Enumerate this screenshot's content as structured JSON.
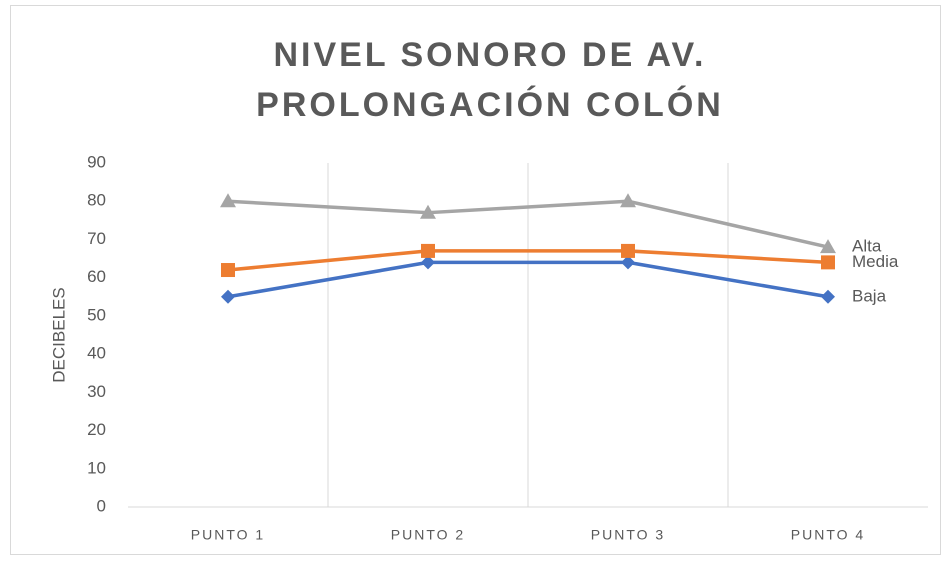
{
  "chart_data": {
    "type": "line",
    "title": "NIVEL SONORO DE AV. PROLONGACIÓN COLÓN",
    "y_label": "DECIBELES",
    "categories": [
      "PUNTO 1",
      "PUNTO 2",
      "PUNTO 3",
      "PUNTO 4"
    ],
    "series": [
      {
        "name": "Baja",
        "color": "#4472c4",
        "marker": "diamond",
        "values": [
          55,
          64,
          64,
          55
        ]
      },
      {
        "name": "Media",
        "color": "#ed7d31",
        "marker": "square",
        "values": [
          62,
          67,
          67,
          64
        ]
      },
      {
        "name": "Alta",
        "color": "#a5a5a5",
        "marker": "triangle",
        "values": [
          80,
          77,
          80,
          68
        ]
      }
    ],
    "ylim": [
      0,
      90
    ],
    "yticks": [
      0,
      10,
      20,
      30,
      40,
      50,
      60,
      70,
      80,
      90
    ],
    "grid": "vertical"
  }
}
